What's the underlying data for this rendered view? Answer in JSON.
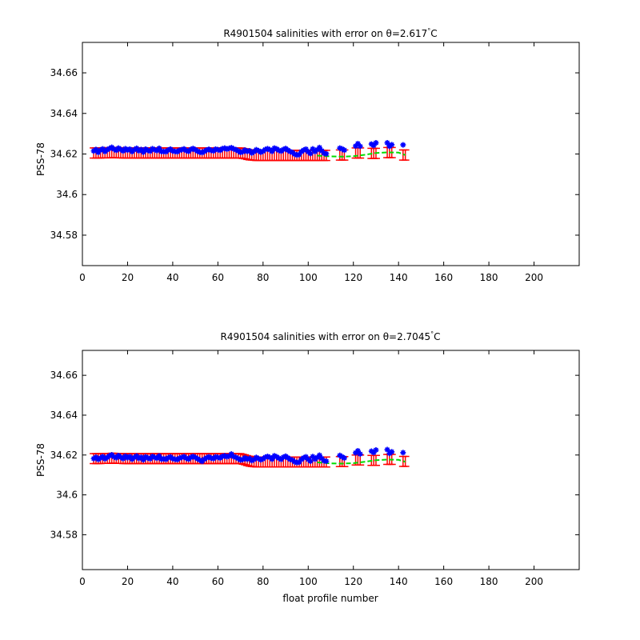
{
  "colors": {
    "profile_marker": "#0000ff",
    "error_bar": "#ff0000",
    "mapped_line": "#00dd00",
    "axes": "#000000",
    "background": "#ffffff"
  },
  "chart_data": [
    {
      "type": "scatter",
      "title": "R4901504 salinities with error on θ=2.617°C",
      "title_prefix": "R4901504 salinities with error on θ=2.617",
      "title_suffix": "C",
      "degree_mark": "°",
      "xlabel": "",
      "ylabel": "PSS-78",
      "xlim": [
        0,
        220
      ],
      "ylim": [
        34.565,
        34.675
      ],
      "xticks": [
        0,
        20,
        40,
        60,
        80,
        100,
        120,
        140,
        160,
        180,
        200
      ],
      "xtick_labels": [
        "0",
        "20",
        "40",
        "60",
        "80",
        "100",
        "120",
        "140",
        "160",
        "180",
        "200"
      ],
      "yticks": [
        34.58,
        34.6,
        34.62,
        34.64,
        34.66
      ],
      "ytick_labels": [
        "34.58",
        "34.6",
        "34.62",
        "34.64",
        "34.66"
      ],
      "grid": false,
      "x": [
        5,
        6,
        7,
        8,
        9,
        10,
        11,
        12,
        13,
        14,
        15,
        16,
        17,
        18,
        19,
        20,
        21,
        22,
        23,
        24,
        25,
        26,
        27,
        28,
        29,
        30,
        31,
        32,
        33,
        34,
        35,
        36,
        37,
        38,
        39,
        40,
        41,
        42,
        43,
        44,
        45,
        46,
        47,
        48,
        49,
        50,
        51,
        52,
        53,
        54,
        55,
        56,
        57,
        58,
        59,
        60,
        61,
        62,
        63,
        64,
        65,
        66,
        67,
        68,
        69,
        70,
        71,
        72,
        73,
        74,
        75,
        76,
        77,
        78,
        79,
        80,
        81,
        82,
        83,
        84,
        85,
        86,
        87,
        88,
        89,
        90,
        91,
        92,
        93,
        94,
        95,
        96,
        97,
        98,
        99,
        100,
        101,
        102,
        103,
        104,
        105,
        106,
        107,
        108,
        114,
        115,
        116,
        121,
        122,
        123,
        128,
        129,
        130,
        135,
        136,
        137,
        142,
        143
      ],
      "series": [
        {
          "marker": "star",
          "values": [
            34.6215,
            34.6222,
            34.6208,
            34.6219,
            34.6225,
            34.6212,
            34.6221,
            34.6227,
            34.6233,
            34.6224,
            34.6218,
            34.6229,
            34.6222,
            34.6215,
            34.6226,
            34.6219,
            34.6224,
            34.6212,
            34.6221,
            34.6228,
            34.6216,
            34.6222,
            34.6209,
            34.6224,
            34.6218,
            34.6214,
            34.6226,
            34.6221,
            34.6217,
            34.6228,
            34.6212,
            34.6213,
            34.6211,
            34.6219,
            34.6224,
            34.6215,
            34.6213,
            34.6211,
            34.6218,
            34.6221,
            34.6225,
            34.6217,
            34.6213,
            34.6222,
            34.6227,
            34.6221,
            34.6214,
            34.6209,
            34.6207,
            34.6213,
            34.6219,
            34.6223,
            34.6218,
            34.6215,
            34.6224,
            34.6221,
            34.6218,
            34.6226,
            34.6229,
            34.6224,
            34.6228,
            34.6231,
            34.6225,
            34.6221,
            34.6215,
            34.6208,
            34.6211,
            34.6219,
            34.6213,
            34.6216,
            34.6205,
            34.6212,
            34.6221,
            34.6216,
            34.6209,
            34.6214,
            34.6222,
            34.6226,
            34.6221,
            34.6213,
            34.6229,
            34.6225,
            34.6218,
            34.6214,
            34.6222,
            34.6227,
            34.6219,
            34.6212,
            34.6208,
            34.6199,
            34.6195,
            34.6197,
            34.6212,
            34.6219,
            34.6224,
            34.6211,
            34.6202,
            34.6225,
            34.6212,
            34.6221,
            34.6232,
            34.6216,
            34.6204,
            34.6201,
            34.6229,
            34.6225,
            34.6219,
            34.6239,
            34.6251,
            34.6238,
            34.6249,
            34.6242,
            34.6255,
            34.6255,
            34.6238,
            34.6246,
            34.6245
          ]
        }
      ],
      "error_bars": {
        "center": [
          34.6205,
          34.6205,
          34.6205,
          34.6205,
          34.6206,
          34.6206,
          34.6206,
          34.6206,
          34.6207,
          34.6207,
          34.6206,
          34.6206,
          34.6206,
          34.6205,
          34.6205,
          34.6205,
          34.6205,
          34.6205,
          34.6205,
          34.6205,
          34.6205,
          34.6205,
          34.6205,
          34.6205,
          34.6205,
          34.6205,
          34.6205,
          34.6205,
          34.6205,
          34.6205,
          34.6205,
          34.6205,
          34.6205,
          34.6205,
          34.6205,
          34.6205,
          34.6205,
          34.6205,
          34.6205,
          34.6205,
          34.6205,
          34.6205,
          34.6205,
          34.6205,
          34.6205,
          34.6205,
          34.6205,
          34.6205,
          34.6205,
          34.6205,
          34.6205,
          34.6205,
          34.6205,
          34.6205,
          34.6205,
          34.6205,
          34.6205,
          34.6205,
          34.6205,
          34.6205,
          34.6205,
          34.6205,
          34.6205,
          34.6205,
          34.6205,
          34.6205,
          34.6203,
          34.6201,
          34.6198,
          34.6196,
          34.6195,
          34.6194,
          34.6193,
          34.6193,
          34.6193,
          34.6193,
          34.6193,
          34.6193,
          34.6193,
          34.6193,
          34.6193,
          34.6193,
          34.6193,
          34.6193,
          34.6193,
          34.6193,
          34.6193,
          34.6193,
          34.6193,
          34.6193,
          34.6193,
          34.6193,
          34.6193,
          34.6193,
          34.6193,
          34.6193,
          34.6193,
          34.6193,
          34.6193,
          34.6193,
          34.6193,
          34.6193,
          34.6193,
          34.6193,
          34.6195,
          34.6195,
          34.6195,
          34.6205,
          34.6205,
          34.6205,
          34.6203,
          34.6203,
          34.6203,
          34.6207,
          34.6207,
          34.6207,
          34.6195,
          34.6195
        ],
        "half_width": 0.0025
      },
      "mapped_line": {
        "x": [
          104,
          110,
          115,
          120,
          125,
          130,
          135,
          140,
          143
        ],
        "y": [
          34.6192,
          34.6188,
          34.6187,
          34.6189,
          34.6196,
          34.6205,
          34.6208,
          34.6207,
          34.6195
        ]
      }
    },
    {
      "type": "scatter",
      "title": "R4901504 salinities with error on θ=2.7045°C",
      "title_prefix": "R4901504 salinities with error on θ=2.7045",
      "title_suffix": "C",
      "degree_mark": "°",
      "xlabel": "float profile number",
      "ylabel": "PSS-78",
      "xlim": [
        0,
        220
      ],
      "ylim": [
        34.5625,
        34.6725
      ],
      "xticks": [
        0,
        20,
        40,
        60,
        80,
        100,
        120,
        140,
        160,
        180,
        200
      ],
      "xtick_labels": [
        "0",
        "20",
        "40",
        "60",
        "80",
        "100",
        "120",
        "140",
        "160",
        "180",
        "200"
      ],
      "yticks": [
        34.58,
        34.6,
        34.62,
        34.64,
        34.66
      ],
      "ytick_labels": [
        "34.58",
        "34.6",
        "34.62",
        "34.64",
        "34.66"
      ],
      "grid": false,
      "x": [
        5,
        6,
        7,
        8,
        9,
        10,
        11,
        12,
        13,
        14,
        15,
        16,
        17,
        18,
        19,
        20,
        21,
        22,
        23,
        24,
        25,
        26,
        27,
        28,
        29,
        30,
        31,
        32,
        33,
        34,
        35,
        36,
        37,
        38,
        39,
        40,
        41,
        42,
        43,
        44,
        45,
        46,
        47,
        48,
        49,
        50,
        51,
        52,
        53,
        54,
        55,
        56,
        57,
        58,
        59,
        60,
        61,
        62,
        63,
        64,
        65,
        66,
        67,
        68,
        69,
        70,
        71,
        72,
        73,
        74,
        75,
        76,
        77,
        78,
        79,
        80,
        81,
        82,
        83,
        84,
        85,
        86,
        87,
        88,
        89,
        90,
        91,
        92,
        93,
        94,
        95,
        96,
        97,
        98,
        99,
        100,
        101,
        102,
        103,
        104,
        105,
        106,
        107,
        108,
        114,
        115,
        116,
        121,
        122,
        123,
        128,
        129,
        130,
        135,
        136,
        137,
        142,
        143
      ],
      "series": [
        {
          "marker": "star",
          "values": [
            34.6182,
            34.6189,
            34.6178,
            34.6185,
            34.6192,
            34.6181,
            34.6188,
            34.6196,
            34.6201,
            34.6191,
            34.6186,
            34.6197,
            34.6189,
            34.6182,
            34.6194,
            34.6186,
            34.6192,
            34.6179,
            34.6188,
            34.6195,
            34.6183,
            34.6189,
            34.6176,
            34.6191,
            34.6185,
            34.6181,
            34.6193,
            34.6188,
            34.6184,
            34.6195,
            34.6179,
            34.6182,
            34.6178,
            34.6186,
            34.6191,
            34.6182,
            34.6179,
            34.6177,
            34.6184,
            34.6188,
            34.6192,
            34.6184,
            34.6179,
            34.6188,
            34.6193,
            34.6188,
            34.6181,
            34.6175,
            34.6168,
            34.6179,
            34.6186,
            34.6191,
            34.6185,
            34.6182,
            34.6191,
            34.6188,
            34.6185,
            34.6193,
            34.6196,
            34.6191,
            34.6195,
            34.6205,
            34.6192,
            34.6188,
            34.6182,
            34.6175,
            34.6178,
            34.6186,
            34.6179,
            34.6183,
            34.6172,
            34.6178,
            34.6188,
            34.6182,
            34.6176,
            34.6181,
            34.6189,
            34.6193,
            34.6188,
            34.6179,
            34.6196,
            34.6191,
            34.6184,
            34.6178,
            34.6189,
            34.6194,
            34.6186,
            34.6178,
            34.6175,
            34.6166,
            34.6162,
            34.6164,
            34.6178,
            34.6186,
            34.6191,
            34.6178,
            34.6169,
            34.6192,
            34.6179,
            34.6188,
            34.6199,
            34.6183,
            34.6171,
            34.6169,
            34.6198,
            34.6191,
            34.6185,
            34.6211,
            34.6221,
            34.6205,
            34.6219,
            34.6212,
            34.6225,
            34.6227,
            34.6208,
            34.6216,
            34.6212
          ]
        }
      ],
      "error_bars": {
        "center": [
          34.6182,
          34.6182,
          34.6182,
          34.6182,
          34.6183,
          34.6183,
          34.6183,
          34.6183,
          34.6184,
          34.6184,
          34.6183,
          34.6183,
          34.6183,
          34.6182,
          34.6182,
          34.6182,
          34.6182,
          34.6182,
          34.6182,
          34.6182,
          34.6182,
          34.6182,
          34.6182,
          34.6182,
          34.6182,
          34.6182,
          34.6182,
          34.6182,
          34.6182,
          34.6182,
          34.6182,
          34.6182,
          34.6182,
          34.6182,
          34.6182,
          34.6182,
          34.6182,
          34.6182,
          34.6182,
          34.6182,
          34.6182,
          34.6182,
          34.6182,
          34.6182,
          34.6182,
          34.6182,
          34.6182,
          34.6182,
          34.6182,
          34.6182,
          34.6182,
          34.6182,
          34.6182,
          34.6182,
          34.6182,
          34.6182,
          34.6182,
          34.6182,
          34.6182,
          34.6182,
          34.6182,
          34.6182,
          34.6182,
          34.6182,
          34.6182,
          34.6182,
          34.6179,
          34.6176,
          34.6172,
          34.6169,
          34.6167,
          34.6166,
          34.6165,
          34.6165,
          34.6165,
          34.6165,
          34.6165,
          34.6165,
          34.6165,
          34.6165,
          34.6165,
          34.6165,
          34.6165,
          34.6165,
          34.6165,
          34.6165,
          34.6165,
          34.6165,
          34.6165,
          34.6165,
          34.6165,
          34.6165,
          34.6165,
          34.6165,
          34.6165,
          34.6165,
          34.6165,
          34.6165,
          34.6165,
          34.6165,
          34.6165,
          34.6165,
          34.6165,
          34.6165,
          34.6167,
          34.6167,
          34.6167,
          34.6175,
          34.6175,
          34.6175,
          34.6173,
          34.6173,
          34.6173,
          34.6178,
          34.6178,
          34.6178,
          34.6168,
          34.6168
        ],
        "half_width": 0.0025
      },
      "mapped_line": {
        "x": [
          104,
          110,
          115,
          120,
          125,
          130,
          135,
          140,
          143
        ],
        "y": [
          34.6163,
          34.6158,
          34.6157,
          34.6159,
          34.6166,
          34.6174,
          34.6177,
          34.6176,
          34.6166
        ]
      }
    }
  ]
}
